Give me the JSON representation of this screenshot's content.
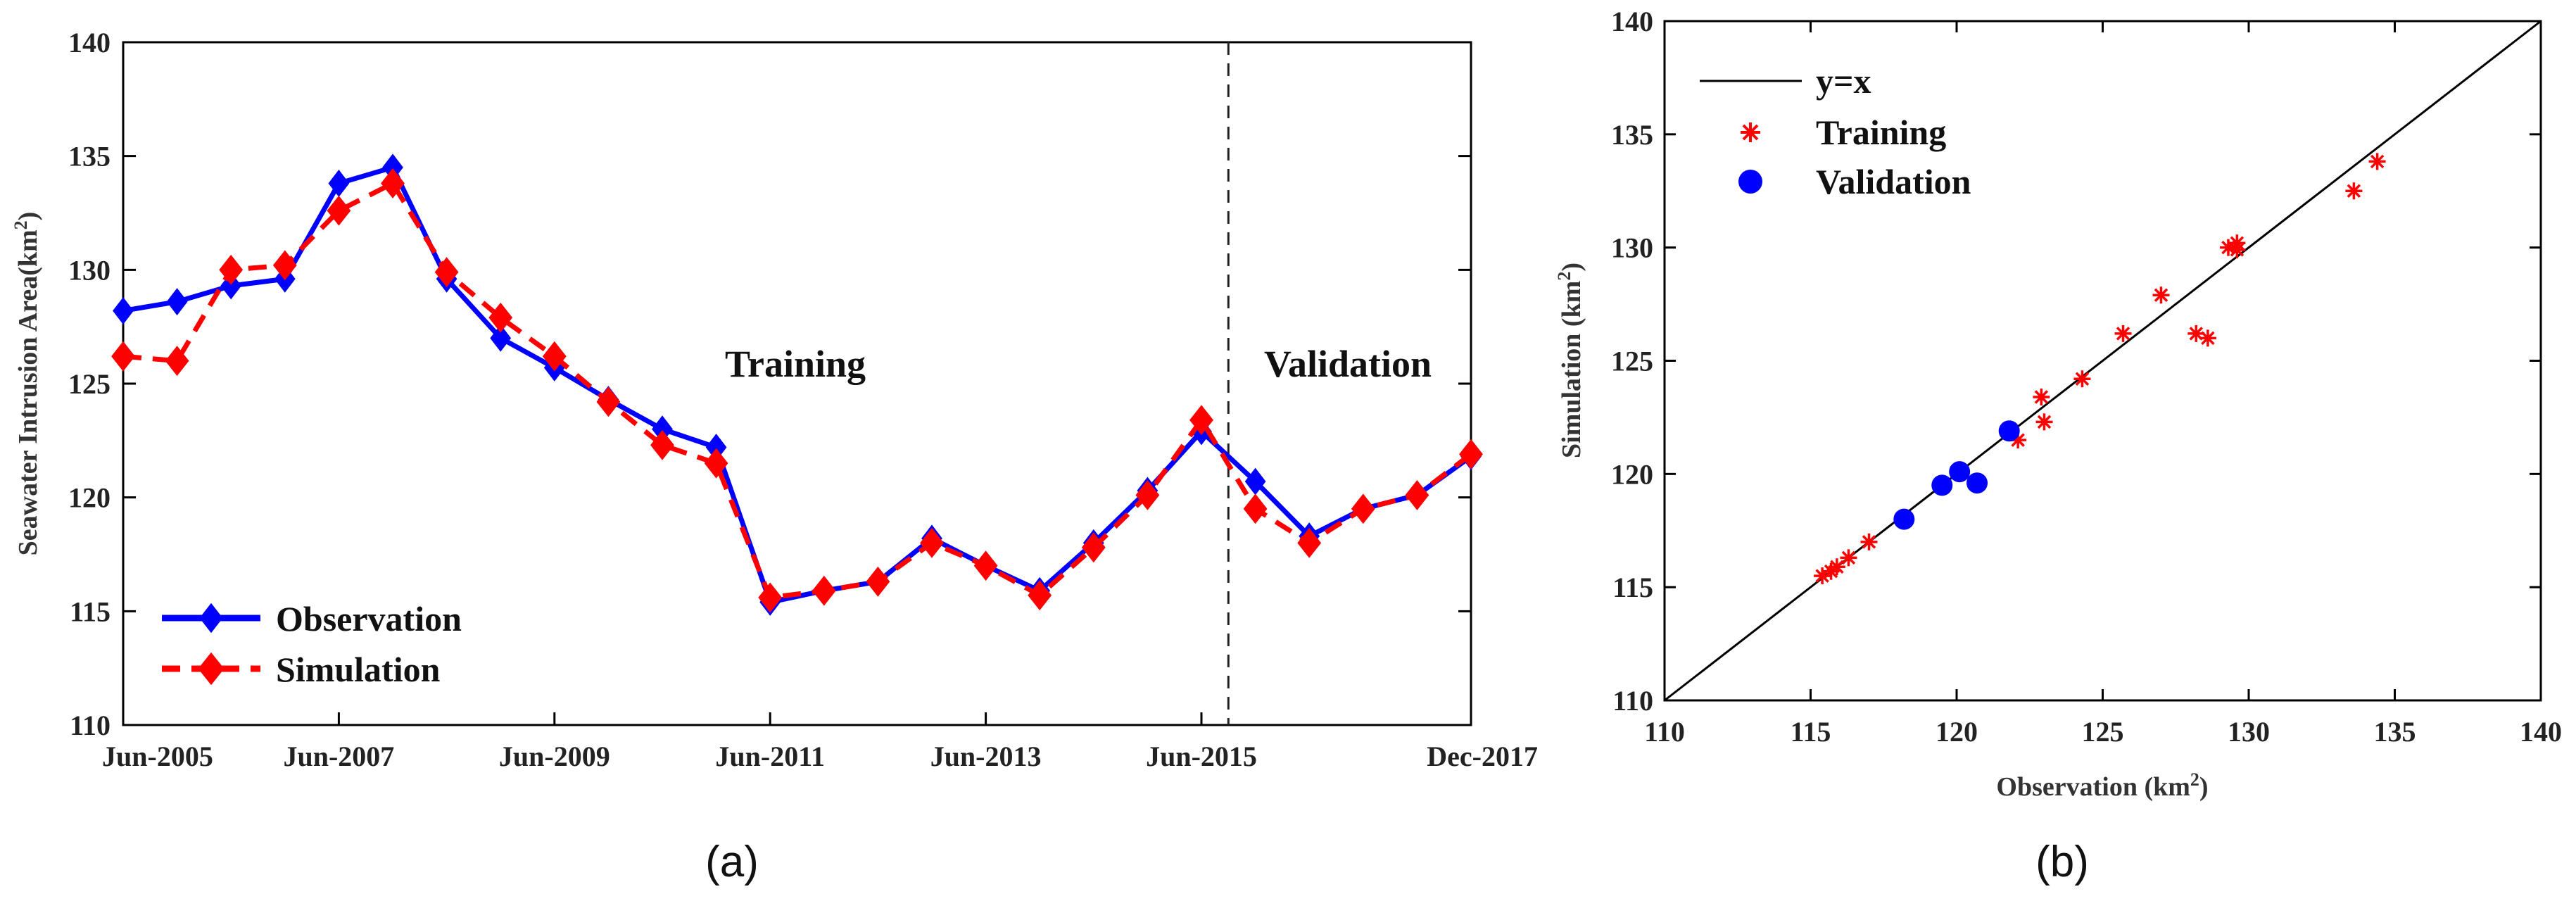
{
  "chart_data": [
    {
      "type": "line",
      "caption": "(a)",
      "ylabel": "Seawater Intrusion Area(km",
      "ylabel_sup": "2",
      "ylabel_close": ")",
      "ylim": [
        110,
        140
      ],
      "yticks": [
        "110",
        "115",
        "120",
        "125",
        "130",
        "135",
        "140"
      ],
      "x_index_range": [
        0,
        25
      ],
      "xticks": [
        {
          "label": "Jun-2005",
          "index": 0
        },
        {
          "label": "Jun-2007",
          "index": 4
        },
        {
          "label": "Jun-2009",
          "index": 8
        },
        {
          "label": "Jun-2011",
          "index": 12
        },
        {
          "label": "Jun-2013",
          "index": 16
        },
        {
          "label": "Jun-2015",
          "index": 20
        },
        {
          "label": "Dec-2017",
          "index": 25
        }
      ],
      "split_index": 20.5,
      "annotations": {
        "training": "Training",
        "validation": "Validation"
      },
      "series": [
        {
          "name": "Observation",
          "color": "#0000FF",
          "style": "solid",
          "values": [
            128.2,
            128.6,
            129.3,
            129.6,
            133.8,
            134.5,
            129.6,
            127.0,
            125.7,
            124.3,
            123.0,
            122.2,
            115.4,
            115.9,
            116.3,
            118.2,
            117.0,
            115.9,
            118.0,
            120.3,
            122.9,
            120.7,
            118.3,
            119.5,
            120.1,
            121.8
          ]
        },
        {
          "name": "Simulation",
          "color": "#FF0000",
          "style": "dashed",
          "values": [
            126.2,
            126.0,
            130.0,
            130.2,
            132.6,
            133.8,
            129.9,
            127.9,
            126.2,
            124.2,
            122.3,
            121.5,
            115.6,
            115.9,
            116.3,
            118.0,
            117.0,
            115.7,
            117.8,
            120.1,
            123.4,
            119.5,
            118.0,
            119.5,
            120.1,
            121.9
          ]
        }
      ]
    },
    {
      "type": "scatter",
      "caption": "(b)",
      "xlabel": "Observation (km",
      "xlabel_sup": "2",
      "xlabel_close": ")",
      "ylabel": "Simulation (km",
      "ylabel_sup": "2",
      "ylabel_close": ")",
      "xlim": [
        110,
        140
      ],
      "ylim": [
        110,
        140
      ],
      "xticks": [
        "110",
        "115",
        "120",
        "125",
        "130",
        "135",
        "140"
      ],
      "yticks": [
        "110",
        "115",
        "120",
        "125",
        "130",
        "135",
        "140"
      ],
      "identity_line": {
        "name": "y=x",
        "color": "#000000"
      },
      "series": [
        {
          "name": "Training",
          "color": "#FF0000",
          "marker": "asterisk",
          "points": [
            [
              115.4,
              115.5
            ],
            [
              115.7,
              115.7
            ],
            [
              115.9,
              115.9
            ],
            [
              116.3,
              116.3
            ],
            [
              117.0,
              117.0
            ],
            [
              118.2,
              118.0
            ],
            [
              122.1,
              121.5
            ],
            [
              123.0,
              122.3
            ],
            [
              122.9,
              123.4
            ],
            [
              124.3,
              124.2
            ],
            [
              125.7,
              126.2
            ],
            [
              127.0,
              127.9
            ],
            [
              128.2,
              126.2
            ],
            [
              128.6,
              126.0
            ],
            [
              129.3,
              130.0
            ],
            [
              129.6,
              130.2
            ],
            [
              129.6,
              129.9
            ],
            [
              133.6,
              132.5
            ],
            [
              134.4,
              133.8
            ]
          ]
        },
        {
          "name": "Validation",
          "color": "#0000FF",
          "marker": "circle",
          "points": [
            [
              118.2,
              118.0
            ],
            [
              119.5,
              119.5
            ],
            [
              120.1,
              120.1
            ],
            [
              120.7,
              119.6
            ],
            [
              121.8,
              121.9
            ]
          ]
        }
      ]
    }
  ]
}
